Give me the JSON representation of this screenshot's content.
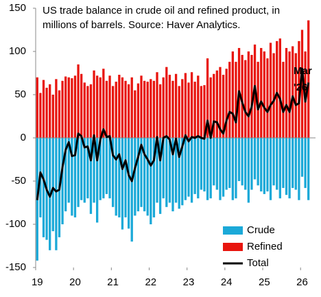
{
  "chart_data": {
    "type": "bar_line",
    "title": "US trade balance in crude oil and refined product, in millions of barrels. Source: Haver Analytics.",
    "categories": [
      "19",
      null,
      null,
      null,
      null,
      null,
      null,
      null,
      null,
      null,
      null,
      null,
      "20",
      null,
      null,
      null,
      null,
      null,
      null,
      null,
      null,
      null,
      null,
      null,
      "21",
      null,
      null,
      null,
      null,
      null,
      null,
      null,
      null,
      null,
      null,
      null,
      "22",
      null,
      null,
      null,
      null,
      null,
      null,
      null,
      null,
      null,
      null,
      null,
      "23",
      null,
      null,
      null,
      null,
      null,
      null,
      null,
      null,
      null,
      null,
      null,
      "24",
      null,
      null,
      null,
      null,
      null,
      null,
      null,
      null,
      null,
      null,
      null,
      "25",
      null,
      null,
      null,
      null,
      null,
      null,
      null,
      null,
      null,
      null,
      null,
      "26",
      null,
      null
    ],
    "series": [
      {
        "name": "Crude",
        "color": "#1ba9d8",
        "kind": "bar",
        "values": [
          -142,
          -92,
          -115,
          -118,
          -130,
          -108,
          -130,
          -115,
          -100,
          -85,
          -75,
          -90,
          -92,
          -80,
          -72,
          -75,
          -70,
          -88,
          -75,
          -98,
          -72,
          -70,
          -65,
          -70,
          -80,
          -90,
          -92,
          -106,
          -92,
          -105,
          -120,
          -90,
          -85,
          -80,
          -85,
          -90,
          -100,
          -92,
          -75,
          -88,
          -70,
          -80,
          -75,
          -85,
          -75,
          -82,
          -78,
          -72,
          -68,
          -75,
          -65,
          -70,
          -60,
          -62,
          -72,
          -70,
          -55,
          -60,
          -72,
          -68,
          -60,
          -58,
          -72,
          -70,
          -50,
          -55,
          -60,
          -75,
          -60,
          -48,
          -55,
          -62,
          -65,
          -62,
          -72,
          -55,
          -60,
          -70,
          -58,
          -66,
          -70,
          -58,
          -60,
          -72,
          -45,
          -58,
          -72
        ]
      },
      {
        "name": "Refined",
        "color": "#e8150e",
        "kind": "bar",
        "values": [
          70,
          52,
          67,
          58,
          62,
          50,
          68,
          55,
          66,
          71,
          70,
          69,
          72,
          85,
          74,
          64,
          60,
          62,
          78,
          72,
          70,
          80,
          66,
          72,
          60,
          65,
          73,
          70,
          66,
          62,
          70,
          55,
          63,
          72,
          66,
          65,
          68,
          66,
          76,
          62,
          70,
          82,
          73,
          66,
          74,
          60,
          68,
          75,
          64,
          76,
          65,
          72,
          60,
          61,
          92,
          70,
          74,
          78,
          82,
          73,
          80,
          88,
          100,
          88,
          104,
          96,
          90,
          100,
          96,
          108,
          88,
          104,
          100,
          92,
          110,
          98,
          112,
          115,
          88,
          104,
          100,
          106,
          98,
          112,
          125,
          100,
          136
        ]
      },
      {
        "name": "Total",
        "color": "#000000",
        "kind": "line",
        "values": [
          -72,
          -40,
          -48,
          -60,
          -68,
          -58,
          -62,
          -60,
          -34,
          -14,
          -5,
          -21,
          -20,
          5,
          2,
          -11,
          -10,
          -26,
          3,
          -26,
          -2,
          10,
          1,
          2,
          -20,
          -25,
          -19,
          -36,
          -26,
          -43,
          -50,
          -35,
          -22,
          -8,
          -19,
          -25,
          -32,
          -26,
          1,
          -26,
          0,
          2,
          -2,
          -19,
          -1,
          -22,
          -10,
          3,
          -4,
          1,
          0,
          2,
          0,
          -1,
          20,
          0,
          19,
          18,
          10,
          5,
          20,
          30,
          28,
          18,
          54,
          41,
          30,
          25,
          36,
          60,
          33,
          42,
          35,
          30,
          38,
          43,
          52,
          45,
          30,
          38,
          30,
          48,
          38,
          40,
          80,
          42,
          64
        ]
      }
    ],
    "annotation": [
      "Mar",
      "'26"
    ],
    "ylim": [
      -150,
      150
    ],
    "yticks": [
      -150,
      -100,
      -50,
      0,
      50,
      100,
      150
    ],
    "grid": false,
    "legend": "lower right"
  }
}
